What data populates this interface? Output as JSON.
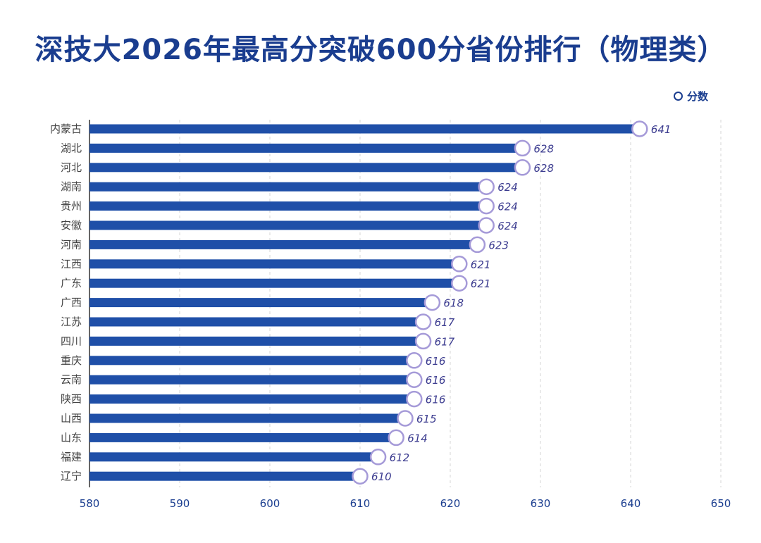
{
  "chart_data": {
    "type": "bar",
    "orientation": "horizontal",
    "title": "深技大2026年最高分突破600分省份排行（物理类）",
    "legend": {
      "label": "分数",
      "position": "top-right"
    },
    "categories": [
      "内蒙古",
      "湖北",
      "河北",
      "湖南",
      "贵州",
      "安徽",
      "河南",
      "江西",
      "广东",
      "广西",
      "江苏",
      "四川",
      "重庆",
      "云南",
      "陕西",
      "山西",
      "山东",
      "福建",
      "辽宁"
    ],
    "series": [
      {
        "name": "分数",
        "values": [
          641,
          628,
          628,
          624,
          624,
          624,
          623,
          621,
          621,
          618,
          617,
          617,
          616,
          616,
          616,
          615,
          614,
          612,
          610
        ]
      }
    ],
    "xlim": [
      580,
      650
    ],
    "xticks": [
      580,
      590,
      600,
      610,
      620,
      630,
      640,
      650
    ],
    "grid": true,
    "colors": {
      "bar": "#1f4fa8",
      "marker_stroke": "#a59ad8",
      "label": "#3b3b8f",
      "title": "#1a3d8f"
    }
  }
}
